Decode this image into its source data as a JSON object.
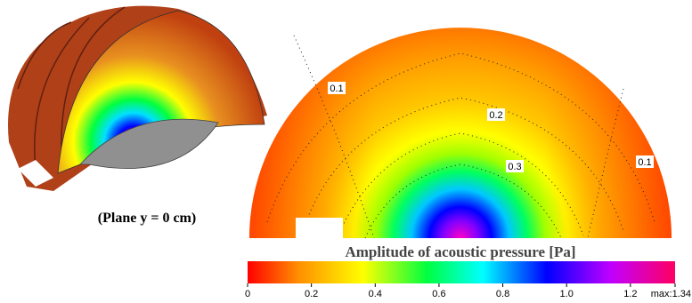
{
  "caption": "(Plane y = 0 cm)",
  "contour_labels": [
    "0.1",
    "0.2",
    "0.3",
    "0.1"
  ],
  "colorbar": {
    "title": "Amplitude of acoustic pressure [Pa]",
    "lim": [
      0,
      1.34
    ],
    "ticks": [
      0,
      0.2,
      0.4,
      0.6,
      0.8,
      {
        "value": 1,
        "label": "1.0"
      },
      1.2,
      {
        "value": 1.34,
        "label": "max:1.34"
      }
    ]
  }
}
